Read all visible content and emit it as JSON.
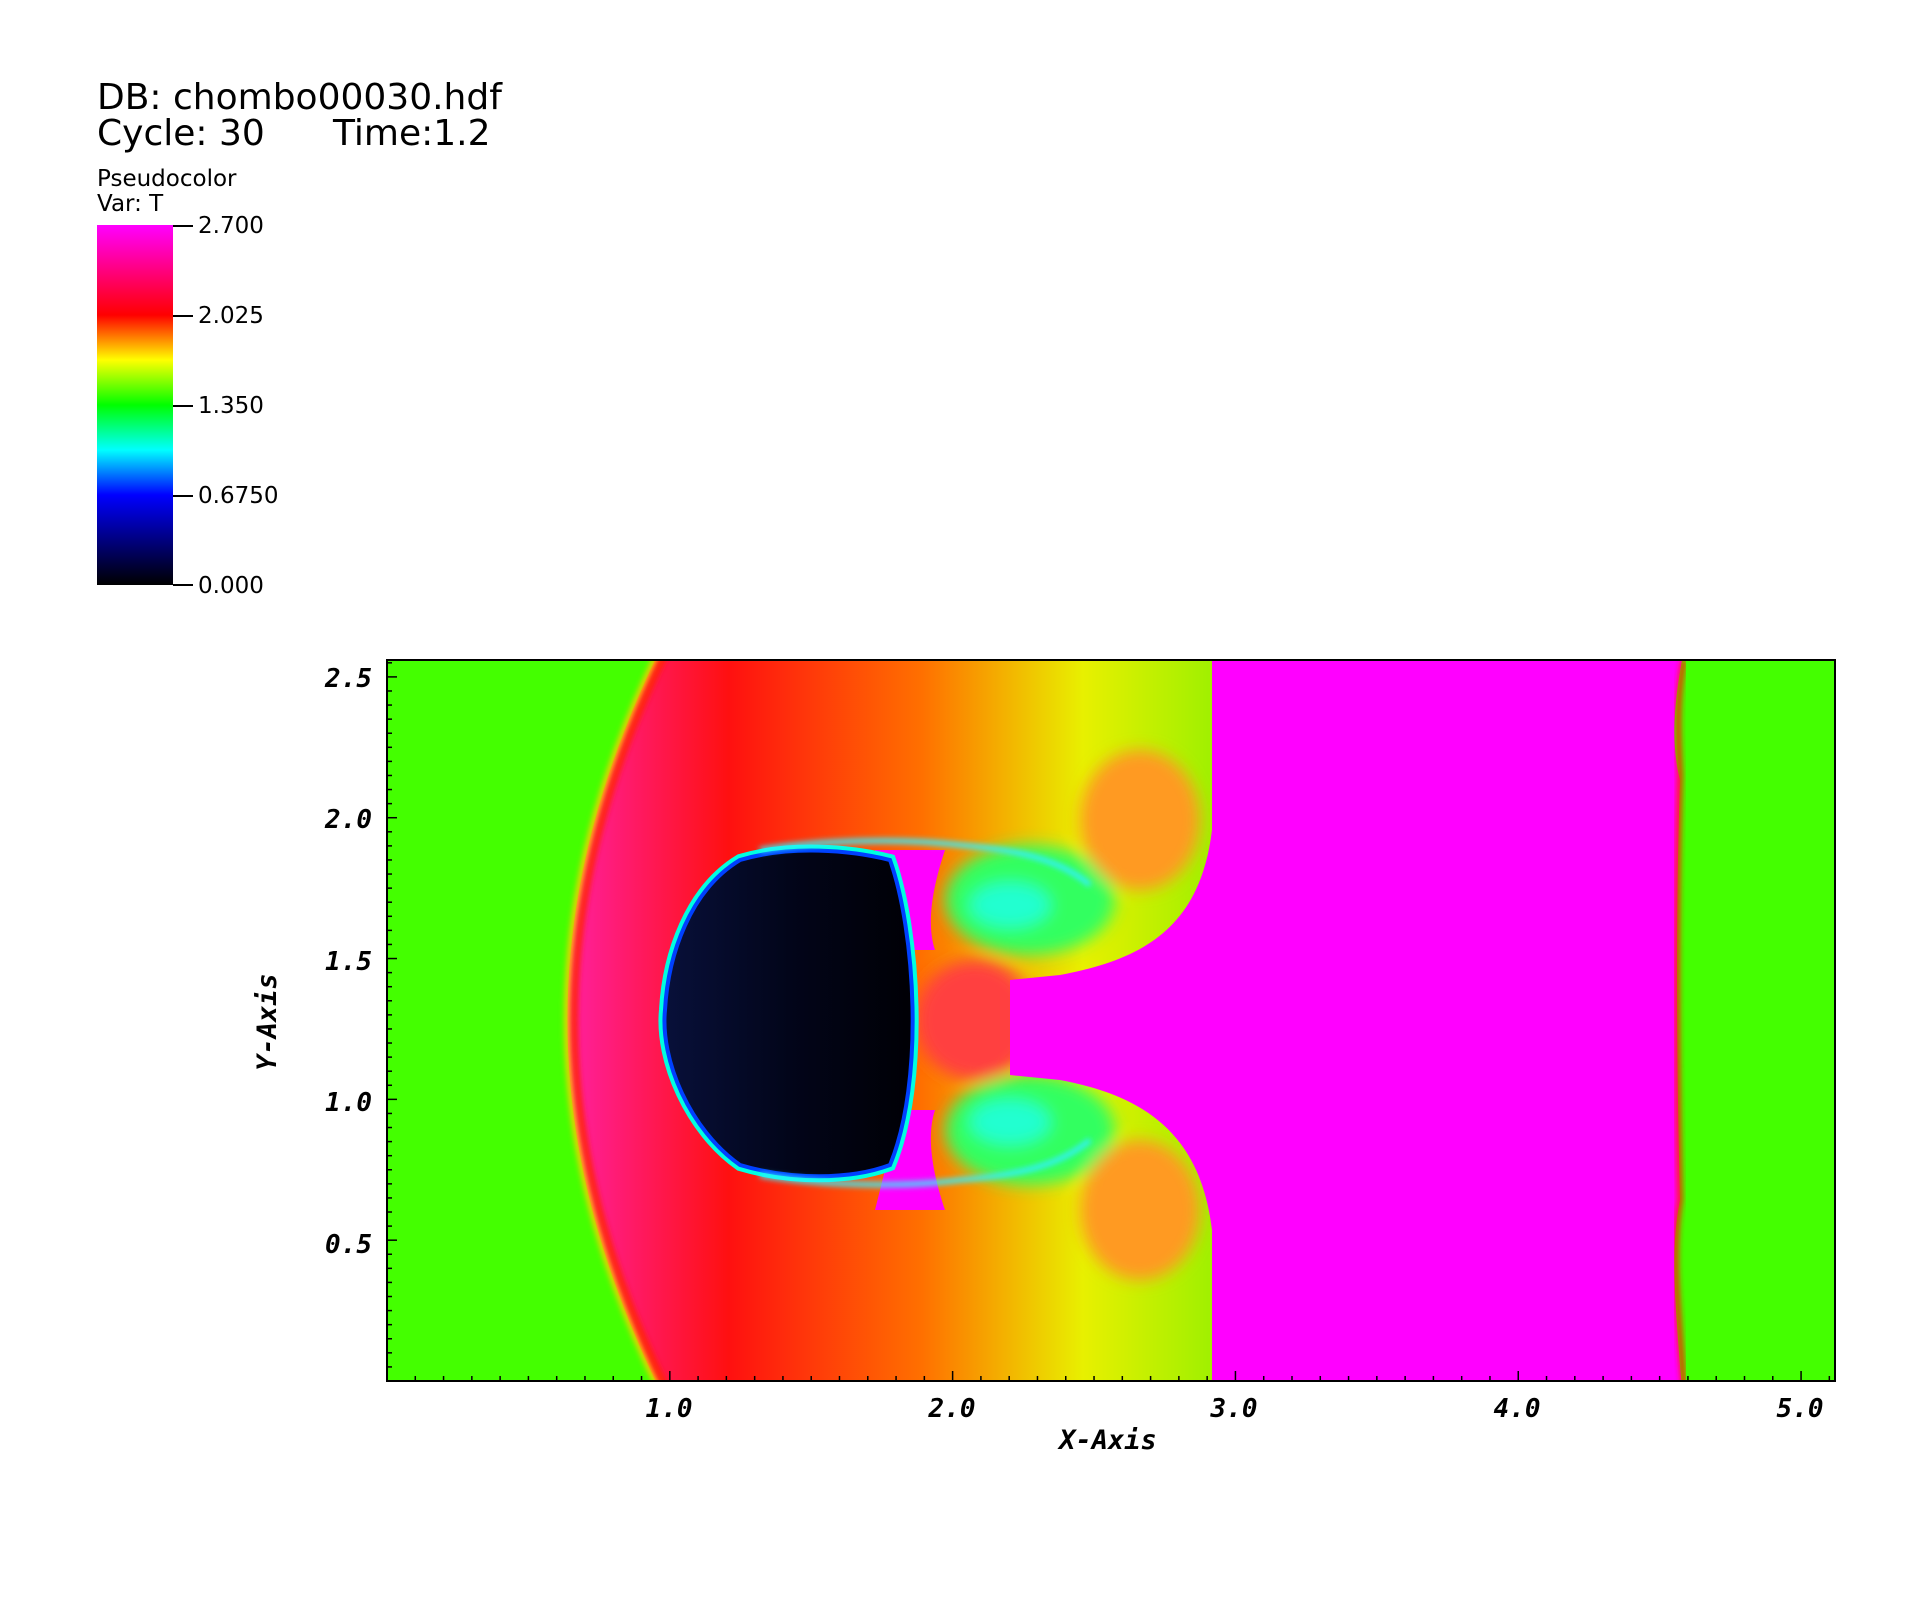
{
  "header": {
    "db_label": "DB: chombo00030.hdf",
    "cycle_label": "Cycle: 30",
    "time_label": "Time:1.2"
  },
  "legend": {
    "plot_type": "Pseudocolor",
    "variable": "Var: T",
    "ticks": [
      "2.700",
      "2.025",
      "1.350",
      "0.6750",
      "0.000"
    ],
    "colormap": [
      "#000000",
      "#0000ff",
      "#00ffff",
      "#00ff00",
      "#ffff00",
      "#ff0000",
      "#ff00ff"
    ]
  },
  "plot": {
    "x_axis_title": "X-Axis",
    "y_axis_title": "Y-Axis",
    "x_range": [
      0,
      5.12
    ],
    "y_range": [
      0,
      2.56
    ],
    "x_tick_labels": [
      "1.0",
      "2.0",
      "3.0",
      "4.0",
      "5.0"
    ],
    "y_tick_labels": [
      "0.5",
      "1.0",
      "1.5",
      "2.0",
      "2.5"
    ]
  }
}
